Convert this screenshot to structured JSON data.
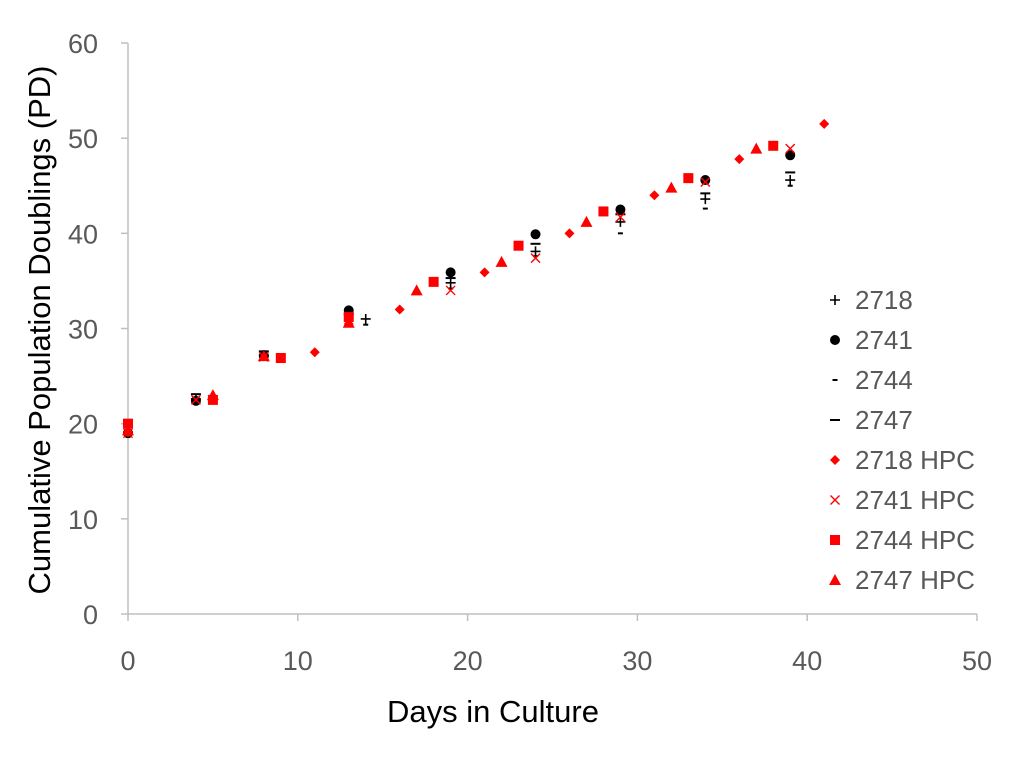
{
  "chart_data": {
    "type": "scatter",
    "title": "",
    "xlabel": "Days in Culture",
    "ylabel": "Cumulative Population Doublings (PD)",
    "xlim": [
      0,
      50
    ],
    "ylim": [
      0,
      60
    ],
    "xticks": [
      0,
      10,
      20,
      30,
      40,
      50
    ],
    "yticks": [
      0,
      10,
      20,
      30,
      40,
      50,
      60
    ],
    "grid": false,
    "legend_position": "right",
    "series": [
      {
        "name": "2718",
        "marker": "plus",
        "color": "#000000",
        "points": [
          {
            "x": 0,
            "y": 19.1
          },
          {
            "x": 4,
            "y": 22.6
          },
          {
            "x": 8,
            "y": 27.2
          },
          {
            "x": 14,
            "y": 31.0
          },
          {
            "x": 19,
            "y": 34.8
          },
          {
            "x": 24,
            "y": 38.1
          },
          {
            "x": 29,
            "y": 41.2
          },
          {
            "x": 34,
            "y": 43.6
          },
          {
            "x": 39,
            "y": 45.6
          }
        ]
      },
      {
        "name": "2741",
        "marker": "circle",
        "color": "#000000",
        "points": [
          {
            "x": 0,
            "y": 19.0
          },
          {
            "x": 4,
            "y": 22.4
          },
          {
            "x": 8,
            "y": 27.1
          },
          {
            "x": 13,
            "y": 31.9
          },
          {
            "x": 19,
            "y": 35.9
          },
          {
            "x": 24,
            "y": 39.9
          },
          {
            "x": 29,
            "y": 42.5
          },
          {
            "x": 34,
            "y": 45.6
          },
          {
            "x": 39,
            "y": 48.2
          }
        ]
      },
      {
        "name": "2744",
        "marker": "short-dash",
        "color": "#000000",
        "points": [
          {
            "x": 0,
            "y": 19.3
          },
          {
            "x": 4,
            "y": 22.3
          },
          {
            "x": 9,
            "y": 26.6
          },
          {
            "x": 14,
            "y": 30.4
          },
          {
            "x": 19,
            "y": 34.2
          },
          {
            "x": 24,
            "y": 37.6
          },
          {
            "x": 29,
            "y": 40.0
          },
          {
            "x": 34,
            "y": 42.6
          },
          {
            "x": 39,
            "y": 45.0
          }
        ]
      },
      {
        "name": "2747",
        "marker": "long-dash",
        "color": "#000000",
        "points": [
          {
            "x": 0,
            "y": 19.6
          },
          {
            "x": 4,
            "y": 23.1
          },
          {
            "x": 8,
            "y": 27.6
          },
          {
            "x": 13,
            "y": 31.5
          },
          {
            "x": 19,
            "y": 35.3
          },
          {
            "x": 24,
            "y": 38.9
          },
          {
            "x": 29,
            "y": 42.0
          },
          {
            "x": 34,
            "y": 44.2
          },
          {
            "x": 39,
            "y": 46.4
          }
        ]
      },
      {
        "name": "2718 HPC",
        "marker": "diamond",
        "color": "#ff0000",
        "points": [
          {
            "x": 0,
            "y": 19.1
          },
          {
            "x": 5,
            "y": 22.7
          },
          {
            "x": 11,
            "y": 27.5
          },
          {
            "x": 16,
            "y": 32.0
          },
          {
            "x": 21,
            "y": 35.9
          },
          {
            "x": 26,
            "y": 40.0
          },
          {
            "x": 31,
            "y": 44.0
          },
          {
            "x": 36,
            "y": 47.8
          },
          {
            "x": 41,
            "y": 51.5
          }
        ]
      },
      {
        "name": "2741 HPC",
        "marker": "cross",
        "color": "#ff0000",
        "points": [
          {
            "x": 0,
            "y": 19.0
          },
          {
            "x": 4,
            "y": 22.5
          },
          {
            "x": 8,
            "y": 27.0
          },
          {
            "x": 13,
            "y": 30.9
          },
          {
            "x": 19,
            "y": 34.0
          },
          {
            "x": 24,
            "y": 37.4
          },
          {
            "x": 29,
            "y": 41.7
          },
          {
            "x": 34,
            "y": 45.4
          },
          {
            "x": 39,
            "y": 48.9
          }
        ]
      },
      {
        "name": "2744 HPC",
        "marker": "square",
        "color": "#ff0000",
        "points": [
          {
            "x": 0,
            "y": 20.0
          },
          {
            "x": 5,
            "y": 22.5
          },
          {
            "x": 9,
            "y": 26.9
          },
          {
            "x": 13,
            "y": 31.2
          },
          {
            "x": 18,
            "y": 34.9
          },
          {
            "x": 23,
            "y": 38.7
          },
          {
            "x": 28,
            "y": 42.3
          },
          {
            "x": 33,
            "y": 45.8
          },
          {
            "x": 38,
            "y": 49.2
          }
        ]
      },
      {
        "name": "2747 HPC",
        "marker": "triangle",
        "color": "#ff0000",
        "points": [
          {
            "x": 0,
            "y": 19.3
          },
          {
            "x": 5,
            "y": 23.0
          },
          {
            "x": 8,
            "y": 27.1
          },
          {
            "x": 13,
            "y": 30.6
          },
          {
            "x": 17,
            "y": 34.0
          },
          {
            "x": 22,
            "y": 37.0
          },
          {
            "x": 27,
            "y": 41.2
          },
          {
            "x": 32,
            "y": 44.8
          },
          {
            "x": 37,
            "y": 48.9
          }
        ]
      }
    ]
  }
}
